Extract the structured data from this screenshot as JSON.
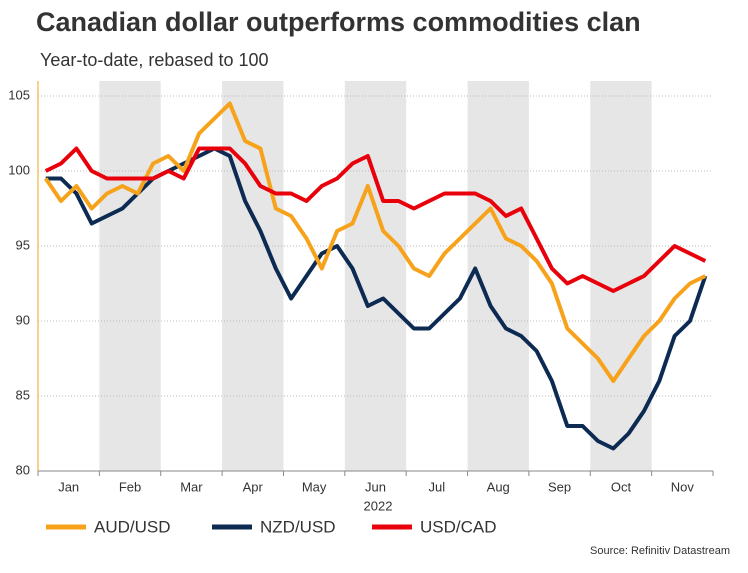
{
  "chart_data": {
    "type": "line",
    "title": "Canadian dollar outperforms commodities clan",
    "subtitle": "Year-to-date, rebased to 100",
    "x_label": "2022",
    "source": "Source: Refinitiv Datastream",
    "categories": [
      null,
      "Jan",
      null,
      null,
      null,
      "Feb",
      null,
      null,
      null,
      "Mar",
      null,
      null,
      null,
      "Apr",
      null,
      null,
      null,
      "May",
      null,
      null,
      null,
      "Jun",
      null,
      null,
      null,
      "Jul",
      null,
      null,
      null,
      "Aug",
      null,
      null,
      null,
      "Sep",
      null,
      null,
      null,
      "Oct",
      null,
      null,
      null,
      "Nov",
      null,
      null
    ],
    "series": [
      {
        "name": "AUD/USD",
        "color": "#f7a21b",
        "values": [
          99.5,
          98,
          99,
          97.5,
          98.5,
          99,
          98.5,
          100.5,
          101,
          100,
          102.5,
          103.5,
          104.5,
          102,
          101.5,
          97.5,
          97,
          95.5,
          93.5,
          96,
          96.5,
          99,
          96,
          95,
          93.5,
          93,
          94.5,
          95.5,
          96.5,
          97.5,
          95.5,
          95,
          94,
          92.5,
          89.5,
          88.5,
          87.5,
          86,
          87.5,
          89,
          90,
          91.5,
          92.5,
          93
        ]
      },
      {
        "name": "NZD/USD",
        "color": "#0d2a52",
        "values": [
          99.5,
          99.5,
          98.5,
          96.5,
          97,
          97.5,
          98.5,
          99.5,
          100,
          100.5,
          101,
          101.5,
          101,
          98,
          96,
          93.5,
          91.5,
          93,
          94.5,
          95,
          93.5,
          91,
          91.5,
          90.5,
          89.5,
          89.5,
          90.5,
          91.5,
          93.5,
          91,
          89.5,
          89,
          88,
          86,
          83,
          83,
          82,
          81.5,
          82.5,
          84,
          86,
          89,
          90,
          93
        ]
      },
      {
        "name": "USD/CAD",
        "color": "#e8000b",
        "values": [
          100,
          100.5,
          101.5,
          100,
          99.5,
          99.5,
          99.5,
          99.5,
          100,
          99.5,
          101.5,
          101.5,
          101.5,
          100.5,
          99,
          98.5,
          98.5,
          98,
          99,
          99.5,
          100.5,
          101,
          98,
          98,
          97.5,
          98,
          98.5,
          98.5,
          98.5,
          98,
          97,
          97.5,
          95.5,
          93.5,
          92.5,
          93,
          92.5,
          92,
          92.5,
          93,
          94,
          95,
          94.5,
          94
        ]
      }
    ],
    "ylim": [
      80,
      106
    ],
    "yticks": [
      80,
      85,
      90,
      95,
      100,
      105
    ],
    "grid": true
  }
}
